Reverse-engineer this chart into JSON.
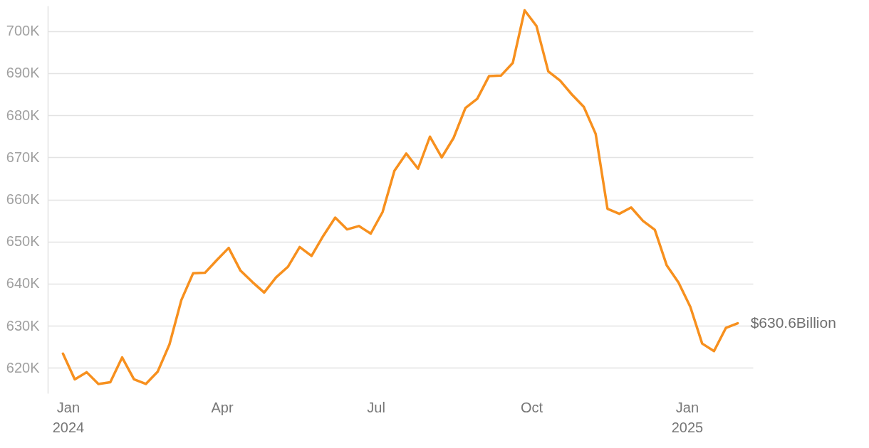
{
  "chart_data": {
    "type": "line",
    "x": [
      "2023-12-29",
      "2024-01-05",
      "2024-01-12",
      "2024-01-19",
      "2024-01-26",
      "2024-02-02",
      "2024-02-09",
      "2024-02-16",
      "2024-02-23",
      "2024-03-01",
      "2024-03-08",
      "2024-03-15",
      "2024-03-22",
      "2024-03-29",
      "2024-04-05",
      "2024-04-12",
      "2024-04-19",
      "2024-04-26",
      "2024-05-03",
      "2024-05-10",
      "2024-05-17",
      "2024-05-24",
      "2024-05-31",
      "2024-06-07",
      "2024-06-14",
      "2024-06-21",
      "2024-06-28",
      "2024-07-05",
      "2024-07-12",
      "2024-07-19",
      "2024-07-26",
      "2024-08-02",
      "2024-08-09",
      "2024-08-16",
      "2024-08-23",
      "2024-08-30",
      "2024-09-06",
      "2024-09-13",
      "2024-09-20",
      "2024-09-27",
      "2024-10-04",
      "2024-10-11",
      "2024-10-18",
      "2024-10-25",
      "2024-11-01",
      "2024-11-08",
      "2024-11-15",
      "2024-11-22",
      "2024-11-29",
      "2024-12-06",
      "2024-12-13",
      "2024-12-20",
      "2024-12-27",
      "2025-01-03",
      "2025-01-10",
      "2025-01-17",
      "2025-01-24",
      "2025-01-31"
    ],
    "series": [
      {
        "color": "#f7901e",
        "values": [
          623.4,
          617.3,
          619.0,
          616.2,
          616.6,
          622.5,
          617.3,
          616.2,
          619.1,
          625.6,
          636.1,
          642.5,
          642.6,
          645.6,
          648.5,
          643.1,
          640.4,
          637.9,
          641.5,
          644.0,
          648.7,
          646.6,
          651.4,
          655.7,
          652.9,
          653.7,
          651.9,
          657.0,
          666.8,
          670.9,
          667.3,
          674.9,
          670.0,
          674.6,
          681.7,
          683.9,
          689.3,
          689.4,
          692.4,
          704.9,
          701.2,
          690.4,
          688.2,
          684.9,
          682.0,
          675.6,
          657.8,
          656.6,
          658.1,
          654.9,
          652.8,
          644.4,
          640.3,
          634.5,
          625.8,
          624.0,
          629.5,
          630.6
        ]
      }
    ],
    "xlim": [
      "2023-12-20",
      "2025-02-09"
    ],
    "xticks": [
      {
        "value": "2024-01-01",
        "label": "Jan\n2024"
      },
      {
        "value": "2024-04-01",
        "label": "Apr"
      },
      {
        "value": "2024-07-01",
        "label": "Jul"
      },
      {
        "value": "2024-10-01",
        "label": "Oct"
      },
      {
        "value": "2025-01-01",
        "label": "Jan\n2025"
      }
    ],
    "yticks": [
      {
        "value": 620,
        "label": "620K"
      },
      {
        "value": 630,
        "label": "630K"
      },
      {
        "value": 640,
        "label": "640K"
      },
      {
        "value": 650,
        "label": "650K"
      },
      {
        "value": 660,
        "label": "660K"
      },
      {
        "value": 670,
        "label": "670K"
      },
      {
        "value": 680,
        "label": "680K"
      },
      {
        "value": 690,
        "label": "690K"
      },
      {
        "value": 700,
        "label": "700K"
      }
    ],
    "ylim": [
      614,
      706
    ],
    "grid": "y",
    "line_style": "solid",
    "marker": "none",
    "annotations": [
      {
        "text": "$630.6Billion",
        "x": "2025-01-31",
        "y": 630.6
      }
    ]
  }
}
